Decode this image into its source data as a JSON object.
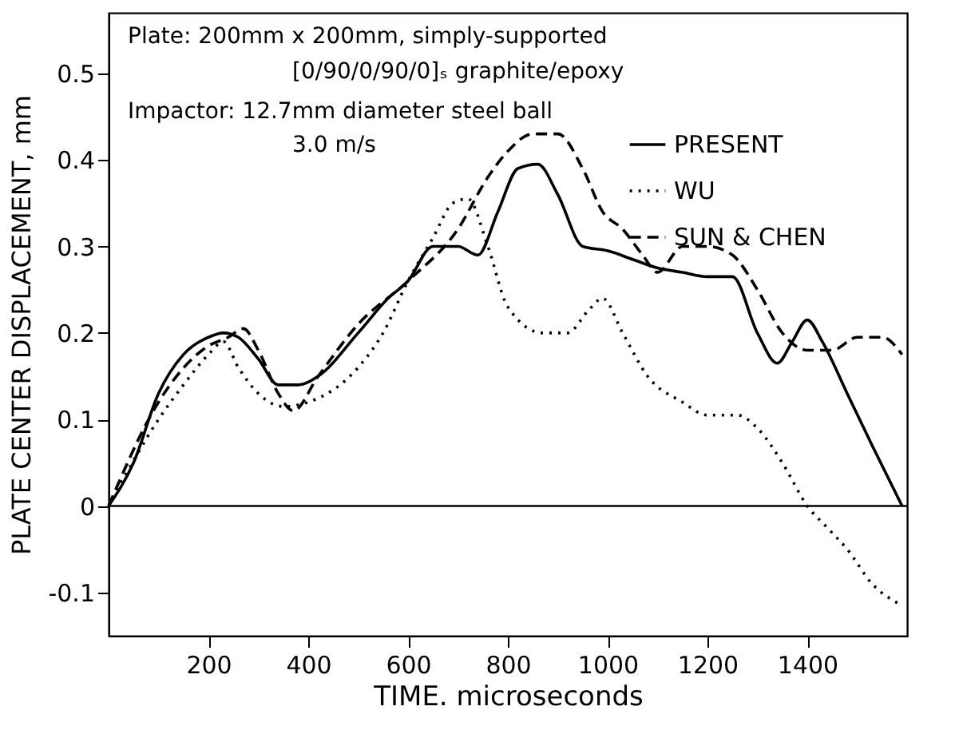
{
  "chart_data": {
    "type": "line",
    "xlabel": "TIME. microseconds",
    "ylabel": "PLATE CENTER DISPLACEMENT, mm",
    "annotations": [
      "Plate: 200mm x 200mm, simply-supported",
      "[0/90/0/90/0]ₛ graphite/epoxy",
      "Impactor: 12.7mm diameter steel ball",
      "3.0 m/s"
    ],
    "xlim": [
      0,
      1600
    ],
    "xticks": [
      200,
      400,
      600,
      800,
      1000,
      1200,
      1400
    ],
    "ylim": [
      -0.15,
      0.57
    ],
    "yticks": [
      -0.1,
      0,
      0.1,
      0.2,
      0.3,
      0.4,
      0.5
    ],
    "grid": false,
    "legend": "top right",
    "marker": "none",
    "ref_lines": [
      {
        "axis": "y",
        "value": 0,
        "color": "#000000",
        "line_style": "solid"
      }
    ],
    "series": [
      {
        "name": "PRESENT",
        "color": "#000000",
        "line_style": "solid",
        "x": [
          0,
          50,
          100,
          150,
          200,
          230,
          260,
          300,
          340,
          380,
          420,
          500,
          560,
          600,
          650,
          700,
          740,
          780,
          820,
          860,
          900,
          950,
          1000,
          1050,
          1100,
          1150,
          1200,
          1250,
          1300,
          1340,
          1370,
          1400,
          1430,
          1480,
          1530,
          1590
        ],
        "values": [
          0,
          0.05,
          0.13,
          0.175,
          0.195,
          0.2,
          0.195,
          0.17,
          0.14,
          0.14,
          0.15,
          0.2,
          0.24,
          0.26,
          0.3,
          0.3,
          0.29,
          0.34,
          0.39,
          0.395,
          0.36,
          0.3,
          0.295,
          0.285,
          0.275,
          0.27,
          0.265,
          0.265,
          0.2,
          0.165,
          0.19,
          0.215,
          0.19,
          0.13,
          0.07,
          0
        ]
      },
      {
        "name": "WU",
        "color": "#000000",
        "line_style": "dotted",
        "x": [
          0,
          100,
          150,
          200,
          230,
          260,
          300,
          350,
          400,
          500,
          550,
          600,
          650,
          690,
          720,
          760,
          800,
          870,
          920,
          960,
          990,
          1030,
          1080,
          1150,
          1200,
          1260,
          1300,
          1350,
          1400,
          1440,
          1480,
          1530,
          1590
        ],
        "values": [
          0,
          0.1,
          0.14,
          0.175,
          0.19,
          0.16,
          0.13,
          0.115,
          0.12,
          0.16,
          0.2,
          0.26,
          0.31,
          0.35,
          0.355,
          0.3,
          0.23,
          0.2,
          0.2,
          0.225,
          0.24,
          0.2,
          0.15,
          0.12,
          0.105,
          0.105,
          0.09,
          0.05,
          0,
          -0.025,
          -0.05,
          -0.09,
          -0.115
        ]
      },
      {
        "name": "SUN & CHEN",
        "color": "#000000",
        "line_style": "dashed",
        "x": [
          0,
          100,
          200,
          240,
          270,
          300,
          340,
          370,
          420,
          500,
          600,
          700,
          760,
          800,
          850,
          900,
          950,
          990,
          1030,
          1070,
          1100,
          1150,
          1200,
          1250,
          1300,
          1350,
          1400,
          1450,
          1500,
          1550,
          1590
        ],
        "values": [
          0,
          0.12,
          0.185,
          0.195,
          0.205,
          0.18,
          0.13,
          0.11,
          0.15,
          0.21,
          0.26,
          0.32,
          0.38,
          0.41,
          0.43,
          0.43,
          0.39,
          0.34,
          0.32,
          0.29,
          0.27,
          0.3,
          0.3,
          0.29,
          0.25,
          0.2,
          0.18,
          0.18,
          0.195,
          0.195,
          0.175
        ]
      }
    ]
  }
}
